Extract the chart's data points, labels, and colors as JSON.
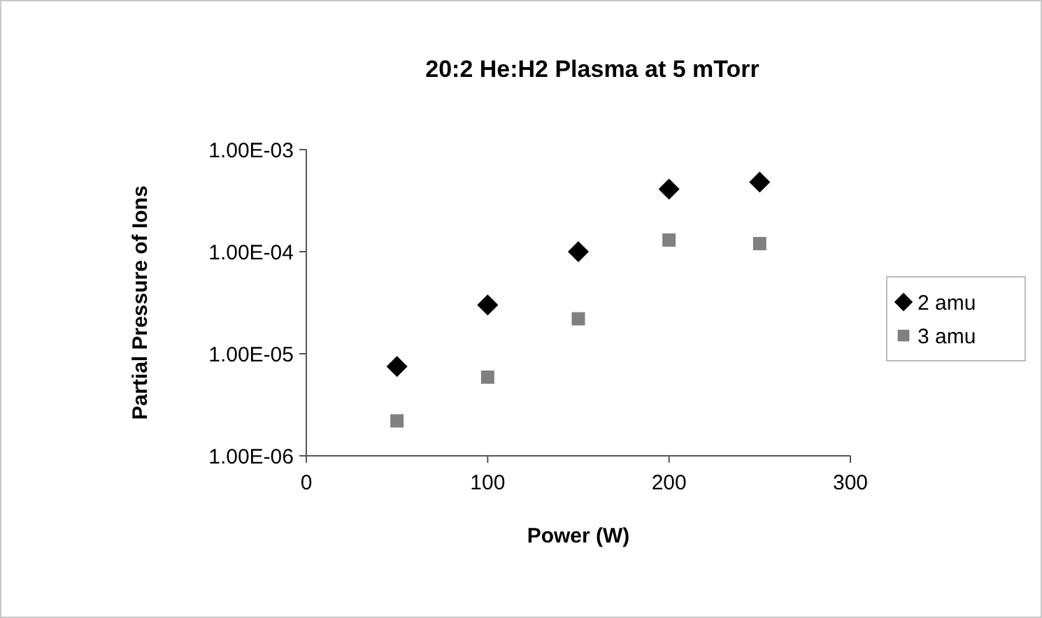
{
  "chart_data": {
    "type": "scatter",
    "title": "20:2 He:H2 Plasma at 5 mTorr",
    "xlabel": "Power (W)",
    "ylabel": "Partial Pressure of Ions",
    "x": [
      50,
      100,
      150,
      200,
      250
    ],
    "series": [
      {
        "name": "2 amu",
        "color": "#000000",
        "marker": "diamond",
        "values": [
          7.5e-06,
          3e-05,
          0.0001,
          0.00041,
          0.00048
        ]
      },
      {
        "name": "3 amu",
        "color": "#808080",
        "marker": "square",
        "values": [
          2.2e-06,
          5.9e-06,
          2.2e-05,
          0.00013,
          0.00012
        ]
      }
    ],
    "xlim": [
      0,
      300
    ],
    "xticks": [
      0,
      100,
      200,
      300
    ],
    "ylim": [
      1e-06,
      0.001
    ],
    "log": true,
    "yticks": [
      {
        "value": 1e-06,
        "label": "1.00E-06"
      },
      {
        "value": 1e-05,
        "label": "1.00E-05"
      },
      {
        "value": 0.0001,
        "label": "1.00E-04"
      },
      {
        "value": 0.001,
        "label": "1.00E-03"
      }
    ],
    "grid": false,
    "legend": "right"
  }
}
